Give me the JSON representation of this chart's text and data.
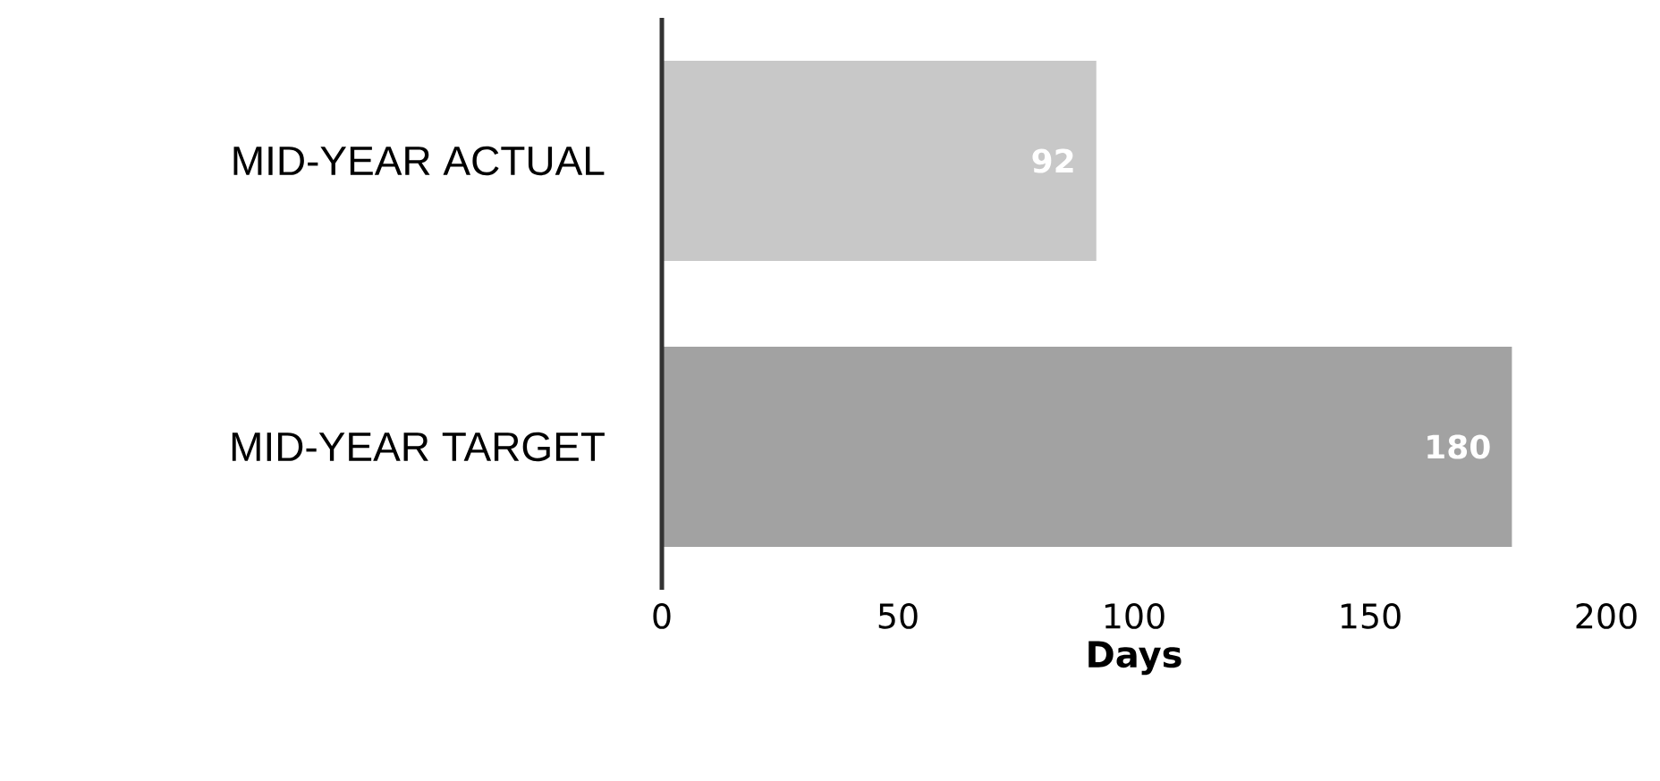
{
  "chart_data": {
    "type": "bar",
    "orientation": "horizontal",
    "xlabel": "Days",
    "categories": [
      "MID-YEAR ACTUAL",
      "MID-YEAR TARGET"
    ],
    "values": [
      92,
      180
    ],
    "colors": [
      "#c8c8c8",
      "#a2a2a2"
    ],
    "xlim": [
      0,
      200
    ],
    "xticks": [
      0,
      50,
      100,
      150,
      200
    ],
    "data_labels": true
  }
}
